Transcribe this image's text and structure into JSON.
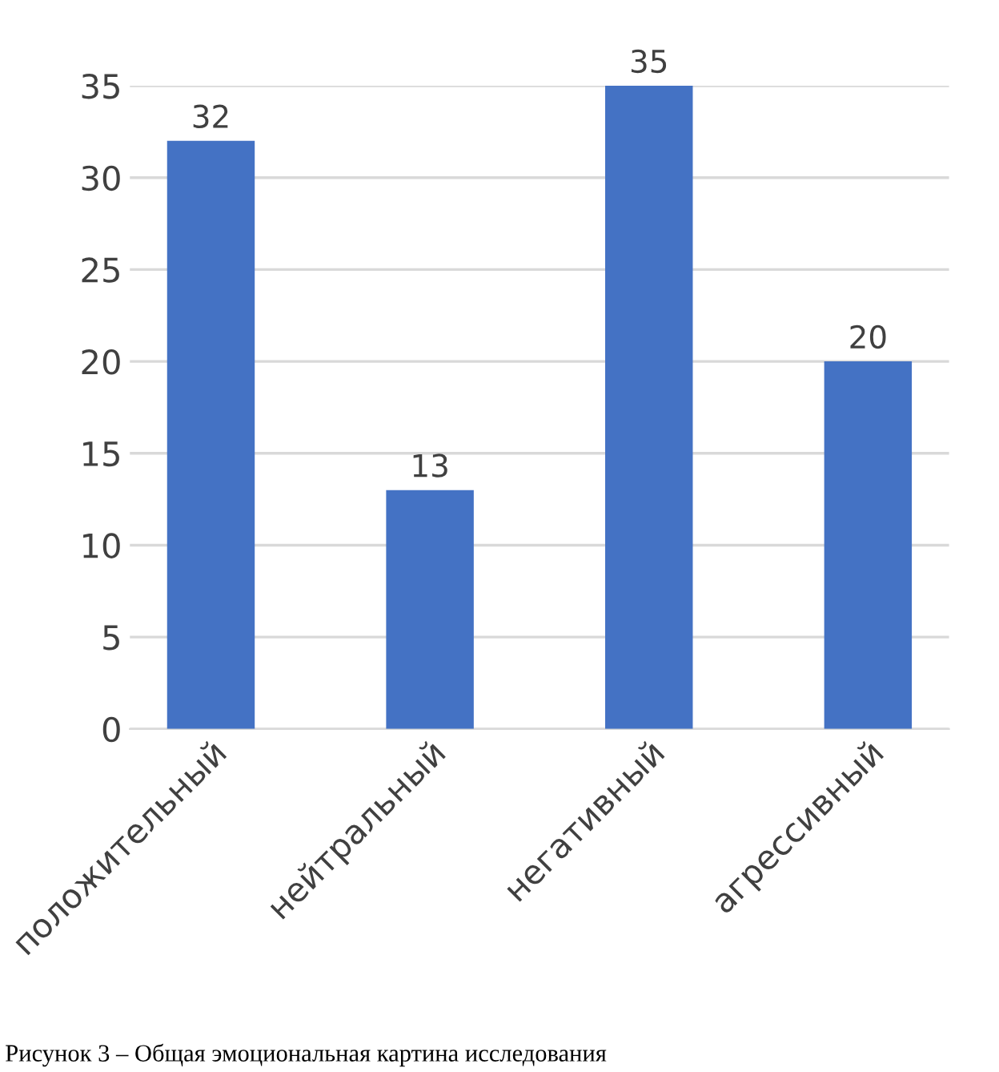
{
  "chart_data": {
    "type": "bar",
    "categories": [
      "положительный",
      "нейтральный",
      "негативный",
      "агрессивный"
    ],
    "values": [
      32,
      13,
      35,
      20
    ],
    "color": "#4472c4",
    "data_labels": true,
    "ylim": [
      0,
      35
    ],
    "yticks": [
      0,
      5,
      10,
      15,
      20,
      25,
      30,
      35
    ],
    "grid": "y",
    "annotations": [
      "Рисунок 3 – Общая эмоциональная картина исследования"
    ]
  }
}
